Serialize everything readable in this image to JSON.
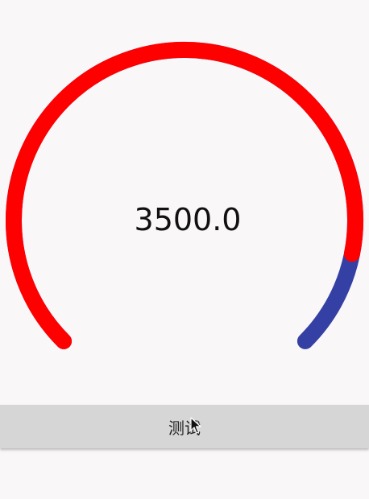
{
  "gauge": {
    "value": 3500,
    "value_text": "3500.0",
    "max": 4000,
    "filled_fraction": 0.875,
    "colors": {
      "progress": "#ff0000",
      "track": "#3440a3"
    }
  },
  "actions": {
    "test_button_label": "测试"
  },
  "icons": {
    "cursor": "mouse-pointer-icon"
  }
}
